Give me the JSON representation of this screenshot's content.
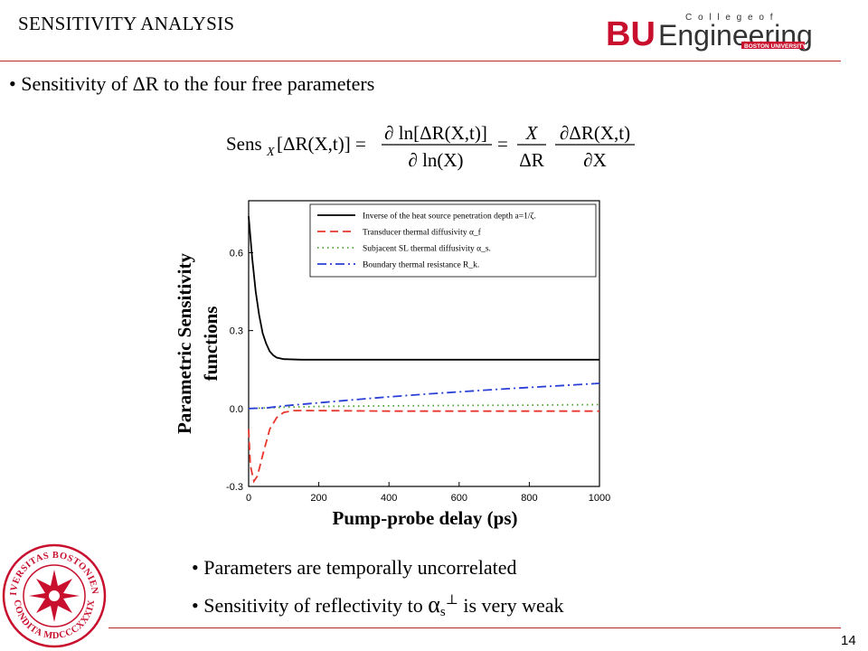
{
  "slide": {
    "title": "SENSITIVITY ANALYSIS",
    "page_number": "14"
  },
  "logo": {
    "bu": "BU",
    "engineering": "Engineering",
    "college_of": "C o l l e g e   o f",
    "boston_university": "BOSTON UNIVERSITY",
    "bu_color": "#c8102e"
  },
  "seal": {
    "top_text": "UNIVERSITAS BOSTONIENSIS",
    "bottom_text": "CONDITA MDCCCXXXIX",
    "color": "#c8102e"
  },
  "bullets": {
    "b1_prefix": "• Sensitivity of ",
    "b1_delta": "ΔR",
    "b1_suffix": " to the four free parameters",
    "b2": "• Parameters are temporally uncorrelated",
    "b3_prefix": "• Sensitivity of reflectivity to ",
    "b3_alpha": "α",
    "b3_sub": "s",
    "b3_sup": "⊥",
    "b3_suffix": " is very weak"
  },
  "equation": {
    "lhs_sens": "Sens",
    "lhs_sub": "X",
    "lhs_arg": "[ΔR(X,t)] =",
    "frac1_num": "∂ ln[ΔR(X,t)]",
    "frac1_den": "∂ ln(X)",
    "eq2": "=",
    "frac2_num": "X",
    "frac2_den": "ΔR",
    "frac3_num": "∂ΔR(X,t)",
    "frac3_den": "∂X"
  },
  "chart_data": {
    "type": "line",
    "xlabel": "Pump-probe delay (ps)",
    "ylabel_line1": "Parametric Sensitivity",
    "ylabel_line2": "functions",
    "xlim": [
      0,
      1000
    ],
    "ylim": [
      -0.3,
      0.8
    ],
    "xticks": [
      0,
      200,
      400,
      600,
      800,
      1000
    ],
    "xtick_labels": [
      "0",
      "200",
      "400",
      "600",
      "800",
      "1000"
    ],
    "yticks": [
      -0.3,
      0.0,
      0.3,
      0.6
    ],
    "ytick_labels": [
      "-0.3",
      "0.0",
      "0.3",
      "0.6"
    ],
    "legend_position": "top-right",
    "series": [
      {
        "name": "Inverse of the heat source penetration depth a=1/ζ.",
        "color": "#000000",
        "dash": "solid",
        "points": [
          [
            0,
            0.74
          ],
          [
            10,
            0.58
          ],
          [
            20,
            0.45
          ],
          [
            30,
            0.36
          ],
          [
            40,
            0.29
          ],
          [
            50,
            0.25
          ],
          [
            60,
            0.22
          ],
          [
            70,
            0.205
          ],
          [
            80,
            0.196
          ],
          [
            100,
            0.19
          ],
          [
            150,
            0.188
          ],
          [
            200,
            0.188
          ],
          [
            400,
            0.188
          ],
          [
            600,
            0.188
          ],
          [
            800,
            0.188
          ],
          [
            1000,
            0.188
          ]
        ]
      },
      {
        "name": "Transducer thermal diffusivity α_f",
        "color": "#e8362e",
        "dash": "dashed",
        "points": [
          [
            0,
            -0.08
          ],
          [
            5,
            -0.22
          ],
          [
            15,
            -0.28
          ],
          [
            25,
            -0.26
          ],
          [
            40,
            -0.18
          ],
          [
            60,
            -0.08
          ],
          [
            80,
            -0.035
          ],
          [
            100,
            -0.015
          ],
          [
            130,
            -0.008
          ],
          [
            200,
            -0.008
          ],
          [
            400,
            -0.01
          ],
          [
            600,
            -0.01
          ],
          [
            800,
            -0.01
          ],
          [
            1000,
            -0.01
          ]
        ]
      },
      {
        "name": "Subjacent SL thermal diffusivity α_s.",
        "color": "#4aa02c",
        "dash": "dotted",
        "points": [
          [
            0,
            0.0
          ],
          [
            100,
            0.005
          ],
          [
            200,
            0.008
          ],
          [
            400,
            0.01
          ],
          [
            600,
            0.012
          ],
          [
            800,
            0.013
          ],
          [
            1000,
            0.015
          ]
        ]
      },
      {
        "name": "Boundary thermal resistance R_k.",
        "color": "#2a3fd8",
        "dash": "dashdot",
        "points": [
          [
            0,
            0.0
          ],
          [
            50,
            0.002
          ],
          [
            100,
            0.01
          ],
          [
            200,
            0.022
          ],
          [
            300,
            0.034
          ],
          [
            400,
            0.045
          ],
          [
            500,
            0.055
          ],
          [
            600,
            0.064
          ],
          [
            700,
            0.073
          ],
          [
            800,
            0.081
          ],
          [
            900,
            0.089
          ],
          [
            1000,
            0.097
          ]
        ]
      }
    ]
  }
}
